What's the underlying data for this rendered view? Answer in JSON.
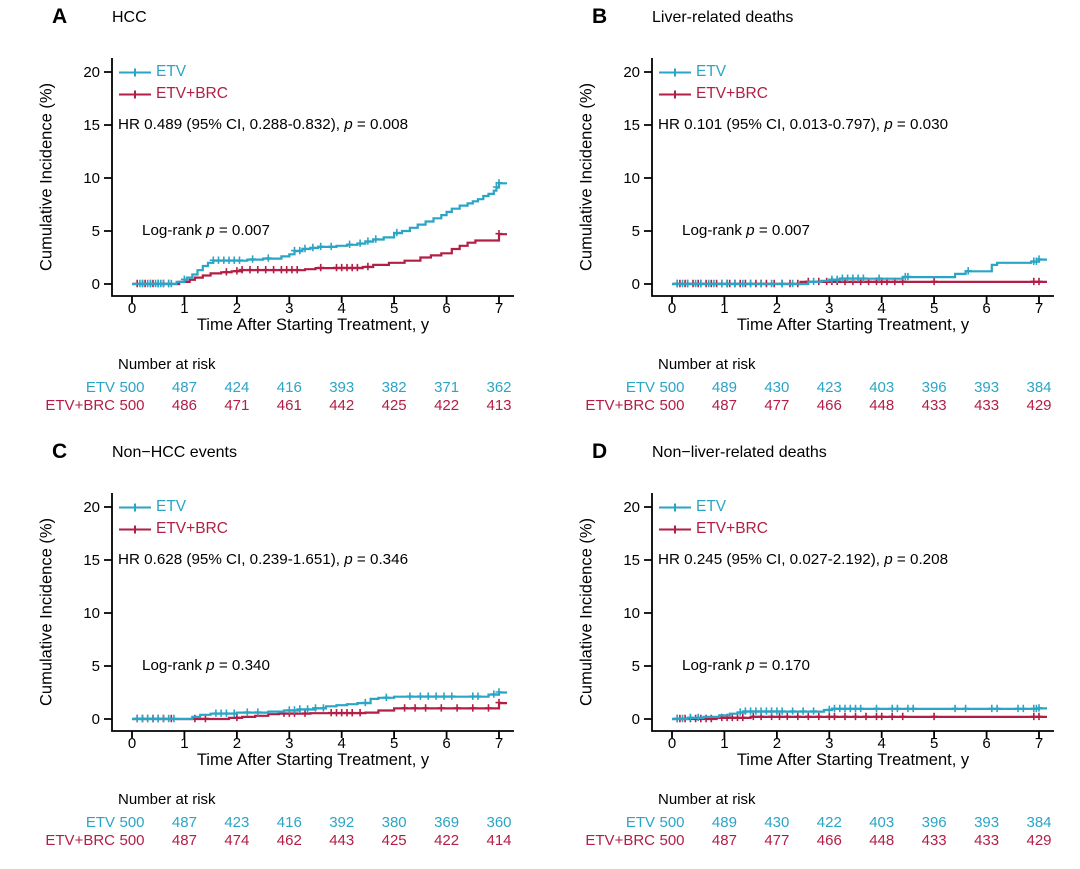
{
  "colors": {
    "etv": "#2AA5C5",
    "etv_brc": "#B21E45",
    "axis": "#000000",
    "background": "#FFFFFF"
  },
  "shared": {
    "ylabel": "Cumulative Incidence (%)",
    "xlabel": "Time After Starting Treatment, y",
    "yticks": [
      0,
      5,
      10,
      15,
      20
    ],
    "xticks": [
      0,
      1,
      2,
      3,
      4,
      5,
      6,
      7
    ],
    "number_at_risk_label": "Number at risk",
    "legend": [
      "ETV",
      "ETV+BRC"
    ]
  },
  "chart_data": [
    {
      "type": "cumulative-incidence-step",
      "letter": "A",
      "title": "HCC",
      "xlim": [
        0,
        7
      ],
      "ylim": [
        0,
        20
      ],
      "hr": {
        "prefix": "HR 0.489 (95% CI, 0.288-0.832), ",
        "p_symbol": "p",
        "p_value": " = 0.008"
      },
      "logrank": {
        "prefix": "Log-rank ",
        "p_symbol": "p",
        "p_value": " = 0.007"
      },
      "risk": {
        "etv": [
          500,
          487,
          424,
          416,
          393,
          382,
          371,
          362
        ],
        "etv_brc": [
          500,
          486,
          471,
          461,
          442,
          425,
          422,
          413
        ]
      },
      "series": [
        {
          "name": "ETV+BRC",
          "color_key": "etv_brc",
          "points": [
            [
              0,
              0
            ],
            [
              0.9,
              0.2
            ],
            [
              1.1,
              0.4
            ],
            [
              1.2,
              0.6
            ],
            [
              1.35,
              0.8
            ],
            [
              1.5,
              1.0
            ],
            [
              1.7,
              1.1
            ],
            [
              1.9,
              1.2
            ],
            [
              2.1,
              1.3
            ],
            [
              3.3,
              1.4
            ],
            [
              3.5,
              1.5
            ],
            [
              4.4,
              1.6
            ],
            [
              4.6,
              1.8
            ],
            [
              4.9,
              2.0
            ],
            [
              5.2,
              2.2
            ],
            [
              5.5,
              2.5
            ],
            [
              5.7,
              2.7
            ],
            [
              5.9,
              2.9
            ],
            [
              6.1,
              3.3
            ],
            [
              6.25,
              3.6
            ],
            [
              6.4,
              3.9
            ],
            [
              6.55,
              4.1
            ],
            [
              7.0,
              4.7
            ]
          ],
          "censor_times": [
            0.1,
            0.2,
            0.25,
            0.35,
            0.4,
            0.5,
            0.6,
            0.7,
            1.8,
            2.0,
            2.1,
            2.25,
            2.4,
            2.55,
            2.7,
            2.85,
            2.95,
            3.05,
            3.15,
            3.6,
            3.9,
            4.0,
            4.1,
            4.2,
            4.3,
            4.5,
            7.0
          ]
        },
        {
          "name": "ETV",
          "color_key": "etv",
          "points": [
            [
              0,
              0
            ],
            [
              0.85,
              0.2
            ],
            [
              1.0,
              0.4
            ],
            [
              1.05,
              0.6
            ],
            [
              1.15,
              0.9
            ],
            [
              1.25,
              1.3
            ],
            [
              1.35,
              1.7
            ],
            [
              1.45,
              2.0
            ],
            [
              1.55,
              2.2
            ],
            [
              2.2,
              2.3
            ],
            [
              2.5,
              2.4
            ],
            [
              2.85,
              2.6
            ],
            [
              3.0,
              2.8
            ],
            [
              3.1,
              3.1
            ],
            [
              3.25,
              3.3
            ],
            [
              3.4,
              3.4
            ],
            [
              3.55,
              3.5
            ],
            [
              3.9,
              3.6
            ],
            [
              4.1,
              3.7
            ],
            [
              4.3,
              3.8
            ],
            [
              4.45,
              4.0
            ],
            [
              4.6,
              4.2
            ],
            [
              4.8,
              4.4
            ],
            [
              5.0,
              4.8
            ],
            [
              5.15,
              5.0
            ],
            [
              5.3,
              5.3
            ],
            [
              5.45,
              5.6
            ],
            [
              5.6,
              5.9
            ],
            [
              5.75,
              6.2
            ],
            [
              5.9,
              6.5
            ],
            [
              6.0,
              6.8
            ],
            [
              6.1,
              7.1
            ],
            [
              6.25,
              7.4
            ],
            [
              6.4,
              7.6
            ],
            [
              6.5,
              7.8
            ],
            [
              6.6,
              8.0
            ],
            [
              6.7,
              8.3
            ],
            [
              6.8,
              8.5
            ],
            [
              6.9,
              8.8
            ],
            [
              6.95,
              9.1
            ],
            [
              7.0,
              9.5
            ]
          ],
          "censor_times": [
            0.15,
            0.2,
            0.3,
            0.35,
            0.45,
            0.5,
            0.55,
            0.6,
            0.7,
            0.75,
            1.0,
            1.55,
            1.65,
            1.75,
            1.85,
            1.95,
            2.05,
            2.3,
            2.6,
            3.1,
            3.2,
            3.3,
            3.45,
            3.6,
            3.8,
            4.15,
            4.35,
            4.5,
            4.65,
            5.05,
            6.95,
            7.0
          ]
        }
      ]
    },
    {
      "type": "cumulative-incidence-step",
      "letter": "B",
      "title": "Liver-related deaths",
      "xlim": [
        0,
        7
      ],
      "ylim": [
        0,
        20
      ],
      "hr": {
        "prefix": "HR 0.101 (95% CI, 0.013-0.797), ",
        "p_symbol": "p",
        "p_value": " = 0.030"
      },
      "logrank": {
        "prefix": "Log-rank ",
        "p_symbol": "p",
        "p_value": " = 0.007"
      },
      "risk": {
        "etv": [
          500,
          489,
          430,
          423,
          403,
          396,
          393,
          384
        ],
        "etv_brc": [
          500,
          487,
          477,
          466,
          448,
          433,
          433,
          429
        ]
      },
      "series": [
        {
          "name": "ETV+BRC",
          "color_key": "etv_brc",
          "points": [
            [
              0,
              0
            ],
            [
              2.45,
              0.2
            ],
            [
              7.0,
              0.2
            ]
          ],
          "censor_times": [
            0.1,
            0.15,
            0.25,
            0.3,
            0.4,
            0.5,
            0.55,
            0.65,
            0.75,
            0.85,
            0.95,
            1.05,
            1.1,
            1.2,
            1.3,
            1.4,
            1.5,
            1.6,
            1.7,
            1.8,
            1.95,
            2.1,
            2.25,
            2.4,
            2.6,
            2.8,
            2.95,
            3.05,
            3.15,
            3.3,
            3.45,
            3.6,
            3.75,
            3.9,
            4.0,
            4.1,
            4.25,
            4.4,
            5.0,
            6.9,
            7.0
          ]
        },
        {
          "name": "ETV",
          "color_key": "etv",
          "points": [
            [
              0,
              0
            ],
            [
              2.6,
              0.2
            ],
            [
              2.85,
              0.3
            ],
            [
              3.0,
              0.4
            ],
            [
              3.2,
              0.5
            ],
            [
              4.4,
              0.65
            ],
            [
              5.4,
              0.95
            ],
            [
              5.6,
              1.2
            ],
            [
              6.1,
              1.8
            ],
            [
              6.2,
              2.0
            ],
            [
              6.85,
              2.1
            ],
            [
              7.0,
              2.3
            ]
          ],
          "censor_times": [
            0.1,
            0.2,
            0.3,
            0.45,
            0.55,
            0.7,
            0.8,
            0.95,
            1.05,
            1.2,
            1.35,
            1.5,
            1.7,
            1.9,
            2.1,
            2.3,
            2.7,
            3.05,
            3.15,
            3.25,
            3.35,
            3.45,
            3.55,
            3.65,
            3.95,
            4.45,
            4.5,
            5.65,
            6.9,
            6.95,
            7.0
          ]
        }
      ]
    },
    {
      "type": "cumulative-incidence-step",
      "letter": "C",
      "title": "Non−HCC events",
      "xlim": [
        0,
        7
      ],
      "ylim": [
        0,
        20
      ],
      "hr": {
        "prefix": "HR 0.628 (95% CI, 0.239-1.651), ",
        "p_symbol": "p",
        "p_value": " = 0.346"
      },
      "logrank": {
        "prefix": "Log-rank ",
        "p_symbol": "p",
        "p_value": " = 0.340"
      },
      "risk": {
        "etv": [
          500,
          487,
          423,
          416,
          392,
          380,
          369,
          360
        ],
        "etv_brc": [
          500,
          487,
          474,
          462,
          443,
          425,
          422,
          414
        ]
      },
      "series": [
        {
          "name": "ETV+BRC",
          "color_key": "etv_brc",
          "points": [
            [
              0,
              0
            ],
            [
              1.85,
              0.1
            ],
            [
              2.1,
              0.2
            ],
            [
              2.35,
              0.3
            ],
            [
              2.6,
              0.45
            ],
            [
              2.8,
              0.5
            ],
            [
              3.4,
              0.55
            ],
            [
              4.45,
              0.6
            ],
            [
              4.7,
              0.8
            ],
            [
              5.0,
              1.0
            ],
            [
              6.95,
              1.0
            ],
            [
              7.0,
              1.5
            ]
          ],
          "censor_times": [
            0.1,
            0.2,
            0.3,
            0.4,
            0.5,
            0.6,
            0.75,
            1.2,
            1.4,
            2.0,
            2.9,
            3.0,
            3.1,
            3.3,
            3.8,
            3.9,
            4.0,
            4.1,
            4.2,
            4.35,
            5.2,
            5.4,
            5.6,
            5.9,
            6.2,
            6.5,
            6.8,
            7.0
          ]
        },
        {
          "name": "ETV",
          "color_key": "etv",
          "points": [
            [
              0,
              0
            ],
            [
              1.15,
              0.2
            ],
            [
              1.3,
              0.4
            ],
            [
              1.5,
              0.5
            ],
            [
              2.0,
              0.6
            ],
            [
              2.6,
              0.7
            ],
            [
              2.9,
              0.8
            ],
            [
              3.2,
              0.9
            ],
            [
              3.5,
              1.0
            ],
            [
              3.7,
              1.2
            ],
            [
              3.9,
              1.3
            ],
            [
              4.1,
              1.4
            ],
            [
              4.3,
              1.5
            ],
            [
              4.55,
              1.9
            ],
            [
              4.7,
              2.0
            ],
            [
              5.0,
              2.1
            ],
            [
              6.8,
              2.3
            ],
            [
              7.0,
              2.5
            ]
          ],
          "censor_times": [
            0.1,
            0.2,
            0.3,
            0.4,
            0.5,
            0.6,
            0.7,
            0.8,
            1.6,
            1.7,
            1.8,
            1.95,
            2.2,
            2.4,
            3.0,
            3.1,
            3.2,
            3.35,
            3.5,
            3.65,
            4.45,
            4.85,
            5.3,
            5.5,
            5.65,
            5.8,
            5.95,
            6.1,
            6.5,
            6.6,
            6.9,
            7.0
          ]
        }
      ]
    },
    {
      "type": "cumulative-incidence-step",
      "letter": "D",
      "title": "Non−liver-related deaths",
      "xlim": [
        0,
        7
      ],
      "ylim": [
        0,
        20
      ],
      "hr": {
        "prefix": "HR 0.245 (95% CI, 0.027-2.192), ",
        "p_symbol": "p",
        "p_value": " = 0.208"
      },
      "logrank": {
        "prefix": "Log-rank ",
        "p_symbol": "p",
        "p_value": " = 0.170"
      },
      "risk": {
        "etv": [
          500,
          489,
          430,
          422,
          403,
          396,
          393,
          384
        ],
        "etv_brc": [
          500,
          487,
          477,
          466,
          448,
          433,
          433,
          429
        ]
      },
      "series": [
        {
          "name": "ETV+BRC",
          "color_key": "etv_brc",
          "points": [
            [
              0,
              0
            ],
            [
              0.85,
              0.1
            ],
            [
              1.5,
              0.2
            ],
            [
              7.0,
              0.2
            ]
          ],
          "censor_times": [
            0.1,
            0.15,
            0.25,
            0.35,
            0.45,
            0.55,
            0.65,
            0.75,
            0.95,
            1.05,
            1.15,
            1.25,
            1.35,
            1.55,
            1.7,
            1.9,
            2.05,
            2.2,
            2.4,
            2.6,
            2.8,
            3.0,
            3.1,
            3.3,
            3.5,
            3.7,
            3.9,
            4.0,
            4.2,
            4.4,
            5.0,
            6.9,
            7.0
          ]
        },
        {
          "name": "ETV",
          "color_key": "etv",
          "points": [
            [
              0,
              0
            ],
            [
              0.3,
              0.1
            ],
            [
              0.6,
              0.2
            ],
            [
              0.9,
              0.35
            ],
            [
              1.1,
              0.5
            ],
            [
              1.25,
              0.6
            ],
            [
              1.4,
              0.7
            ],
            [
              2.9,
              0.85
            ],
            [
              3.05,
              0.95
            ],
            [
              7.0,
              1.0
            ]
          ],
          "censor_times": [
            0.1,
            0.2,
            0.35,
            0.5,
            1.3,
            1.4,
            1.5,
            1.6,
            1.7,
            1.8,
            1.9,
            2.0,
            2.1,
            2.3,
            2.5,
            2.7,
            3.0,
            3.1,
            3.2,
            3.3,
            3.4,
            3.5,
            3.6,
            3.9,
            4.2,
            4.3,
            4.5,
            4.6,
            5.4,
            5.6,
            6.1,
            6.2,
            6.6,
            6.7,
            6.9,
            6.95,
            7.0
          ]
        }
      ]
    }
  ]
}
